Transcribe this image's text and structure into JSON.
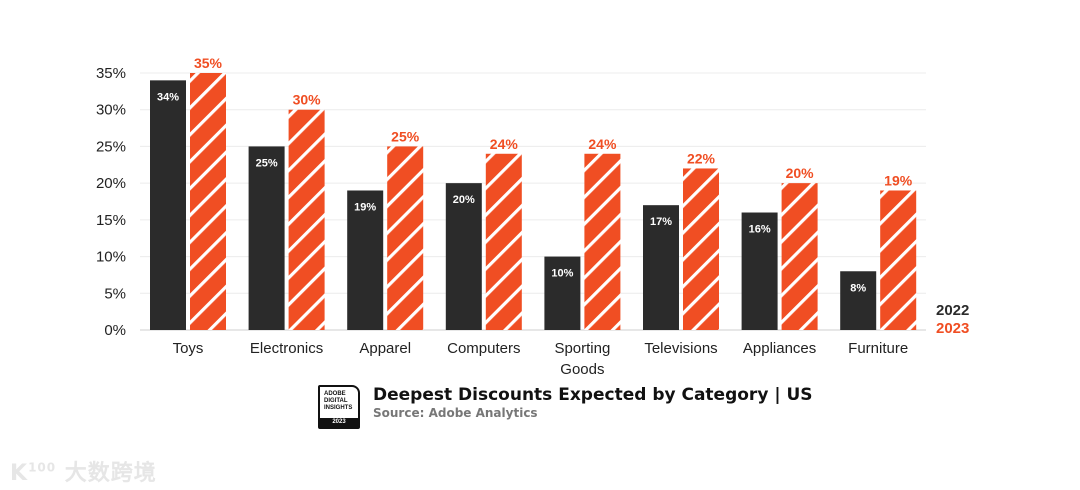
{
  "chart_data": {
    "type": "bar",
    "title": "Deepest Discounts Expected by Category | US",
    "subtitle": "Source: Adobe Analytics",
    "categories": [
      "Toys",
      "Electronics",
      "Apparel",
      "Computers",
      "Sporting Goods",
      "Televisions",
      "Appliances",
      "Furniture"
    ],
    "series": [
      {
        "name": "2022",
        "color": "#2b2b2b",
        "values": [
          34,
          25,
          19,
          20,
          10,
          17,
          16,
          8
        ]
      },
      {
        "name": "2023",
        "color": "#f04e23",
        "values": [
          35,
          30,
          25,
          24,
          24,
          22,
          20,
          19
        ]
      }
    ],
    "yticks": [
      0,
      5,
      10,
      15,
      20,
      25,
      30,
      35
    ],
    "ylim": [
      0,
      35
    ],
    "yformat": "%",
    "grid": true,
    "legend": "right",
    "xlabel": "",
    "ylabel": ""
  },
  "badge": {
    "lines": [
      "ADOBE",
      "DIGITAL",
      "INSIGHTS"
    ],
    "year": "2023"
  },
  "watermark": "大数跨境"
}
